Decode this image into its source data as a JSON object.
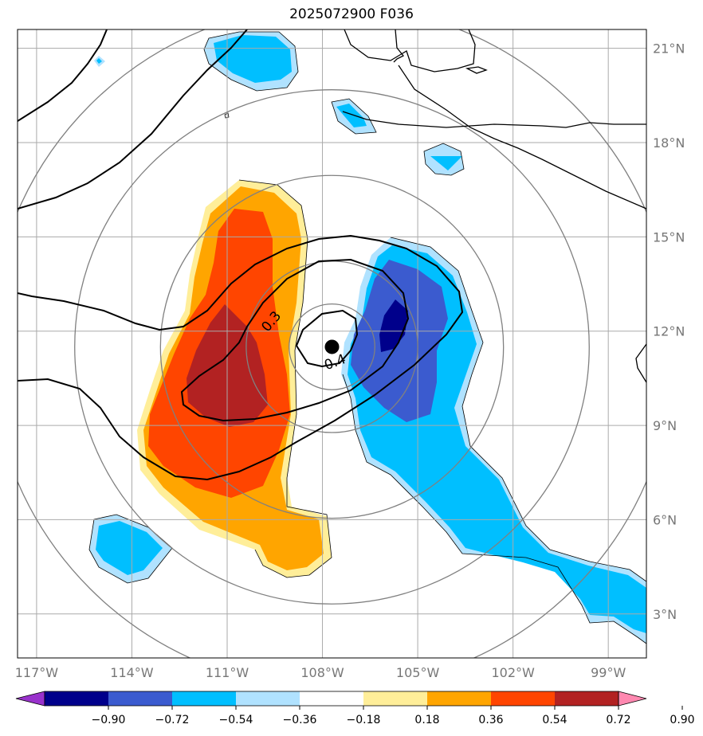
{
  "title": "2025072900 F036",
  "map": {
    "lon_range": [
      -117.6,
      -97.8
    ],
    "lat_range": [
      1.6,
      21.6
    ],
    "lon_ticks": [
      "117°W",
      "114°W",
      "111°W",
      "108°W",
      "105°W",
      "102°W",
      "99°W"
    ],
    "lat_ticks": [
      "3°N",
      "6°N",
      "9°N",
      "12°N",
      "15°N",
      "18°N",
      "21°N"
    ],
    "lon_tick_values": [
      -117,
      -114,
      -111,
      -108,
      -105,
      -102,
      -99
    ],
    "lat_tick_values": [
      3,
      6,
      9,
      12,
      15,
      18,
      21
    ],
    "grid": true,
    "storm_center": {
      "lon": -107.7,
      "lat": 11.5
    },
    "range_rings_deg": [
      2.7,
      5.4,
      8.1
    ],
    "contour_labels": [
      {
        "text": "0.3",
        "lon": -109.6,
        "lat": 12.3,
        "rotate": -50
      },
      {
        "text": "0.4",
        "lon": -107.6,
        "lat": 11.0,
        "rotate": -20
      }
    ]
  },
  "colorbar": {
    "levels": [
      "−0.90",
      "−0.72",
      "−0.54",
      "−0.36",
      "−0.18",
      "0.18",
      "0.36",
      "0.54",
      "0.72",
      "0.90"
    ],
    "colors": [
      "#9932cc",
      "#00008b",
      "#3b5bcf",
      "#00bfff",
      "#b0e2ff",
      "#ffffff",
      "#ffee99",
      "#ffa500",
      "#ff4500",
      "#b22222",
      "#ff88b0"
    ]
  }
}
